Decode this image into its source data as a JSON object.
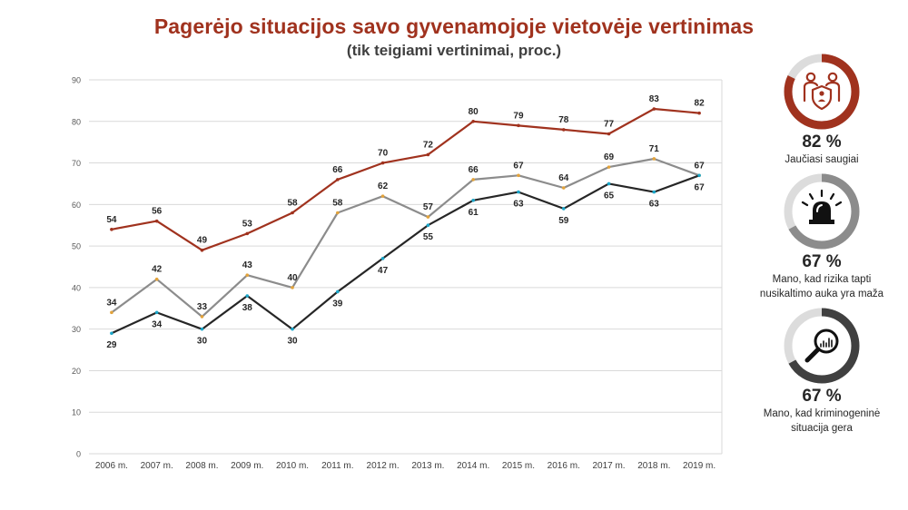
{
  "title": "Pagerėjo situacijos savo gyvenamojoje vietovėje vertinimas",
  "subtitle": "(tik teigiami vertinimai, proc.)",
  "chart_data": {
    "type": "line",
    "title": "Pagerėjo situacijos savo gyvenamojoje vietovėje vertinimas",
    "subtitle": "(tik teigiami vertinimai, proc.)",
    "xlabel": "",
    "ylabel": "",
    "ylim": [
      0,
      90
    ],
    "yticks": [
      0,
      10,
      20,
      30,
      40,
      50,
      60,
      70,
      80,
      90
    ],
    "grid": true,
    "legend": "none",
    "categories": [
      "2006 m.",
      "2007 m.",
      "2008 m.",
      "2009 m.",
      "2010 m.",
      "2011 m.",
      "2012 m.",
      "2013 m.",
      "2014 m.",
      "2015 m.",
      "2016 m.",
      "2017 m.",
      "2018 m.",
      "2019 m."
    ],
    "series": [
      {
        "values": [
          54,
          56,
          49,
          53,
          58,
          66,
          70,
          72,
          80,
          79,
          78,
          77,
          83,
          82
        ],
        "color": "#a0321e",
        "marker_color": "#a0321e",
        "label_pos": "above"
      },
      {
        "values": [
          34,
          42,
          33,
          43,
          40,
          58,
          62,
          57,
          66,
          67,
          64,
          69,
          71,
          67
        ],
        "color": "#8c8c8c",
        "marker_color": "#e3a33b",
        "label_pos": "above"
      },
      {
        "values": [
          29,
          34,
          30,
          38,
          30,
          39,
          47,
          55,
          61,
          63,
          59,
          65,
          63,
          67
        ],
        "color": "#262626",
        "marker_color": "#1aa6c9",
        "label_pos": "below"
      }
    ]
  },
  "kpis": [
    {
      "value": "82 %",
      "label": "Jaučiasi saugiai",
      "percent": 82,
      "color": "#a0321e",
      "icon": "family-shield-icon"
    },
    {
      "value": "67 %",
      "label": "Mano, kad rizika tapti\nnusikaltimo auka yra maža",
      "percent": 67,
      "color": "#8c8c8c",
      "icon": "siren-icon"
    },
    {
      "value": "67 %",
      "label": "Mano, kad kriminogeninė\nsituacija gera",
      "percent": 67,
      "color": "#404040",
      "icon": "magnifier-chart-icon"
    }
  ]
}
